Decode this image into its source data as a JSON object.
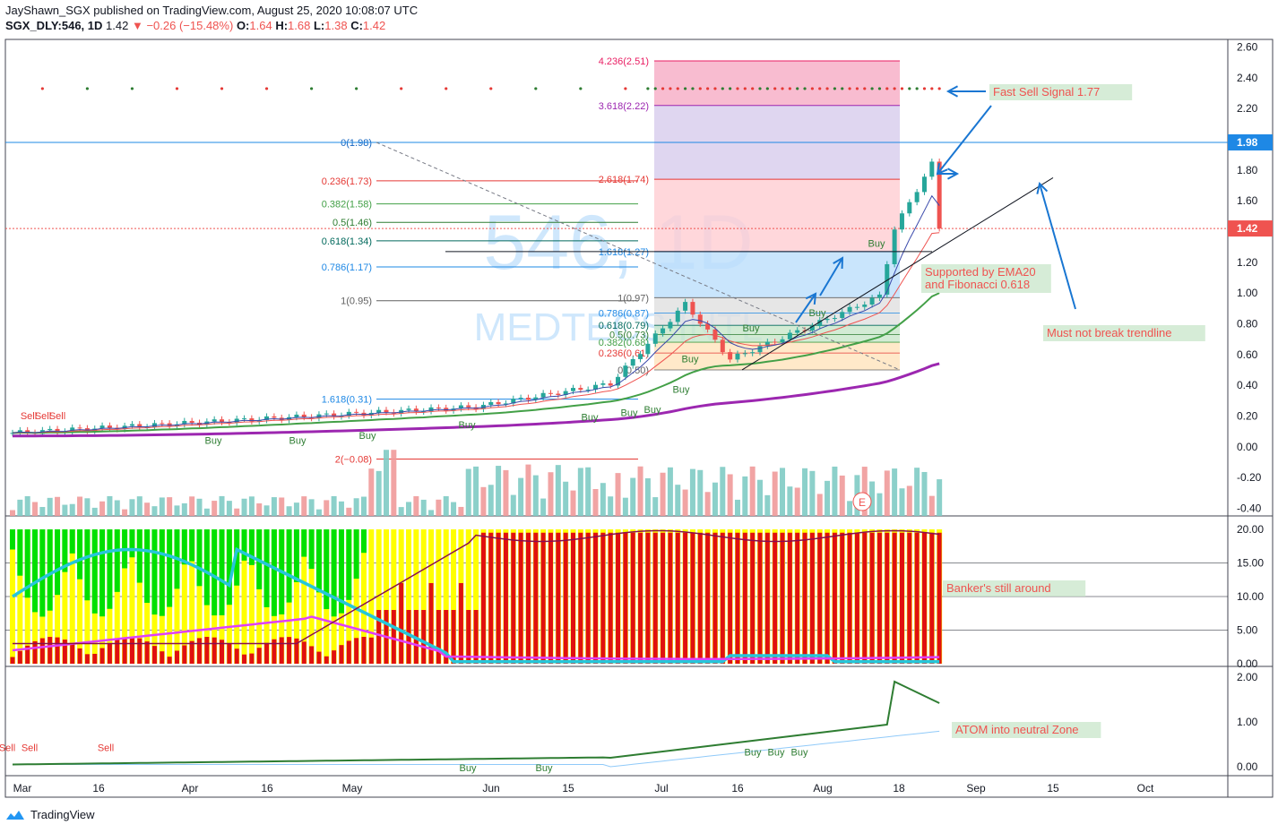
{
  "header": {
    "publisher_line": "JayShawn_SGX published on TradingView.com, August 25, 2020 10:08:07 UTC",
    "symbol": "SGX_DLY:546, 1D",
    "last": "1.42",
    "change": "−0.26 (−15.48%)",
    "open_label": "O:",
    "open": "1.64",
    "high_label": "H:",
    "high": "1.68",
    "low_label": "L:",
    "low": "1.38",
    "close_label": "C:",
    "close": "1.42"
  },
  "footer": {
    "brand": "TradingView"
  },
  "watermark": {
    "line1": "546, 1D",
    "line2": "MEDTECS INTL"
  },
  "colors": {
    "up": "#26a69a",
    "down": "#ef5350",
    "ema_green": "#43a047",
    "ema_purple": "#9c27b0",
    "fib_pink": "#f48fb1",
    "fib_lav": "#d1c4e9",
    "fib_blue": "#bbdefb",
    "fib_red": "#ffcdd2",
    "annot_bg": "#c8e6c9",
    "annot_text": "#ef5350",
    "arrow": "#1976d2",
    "yellow": "#ffff00",
    "bar_red": "#e01010"
  },
  "chart_data": [
    {
      "type": "candlestick",
      "panel": "price",
      "x_labels": [
        "Mar",
        "16",
        "Apr",
        "16",
        "May",
        "Jun",
        "15",
        "Jul",
        "16",
        "Aug",
        "18",
        "Sep",
        "15",
        "Oct"
      ],
      "price_axis": [
        "2.60",
        "2.40",
        "2.20",
        "2.00",
        "1.80",
        "1.60",
        "1.40",
        "1.20",
        "1.00",
        "0.80",
        "0.60",
        "0.40",
        "0.20",
        "0.00",
        "-0.20",
        "-0.40"
      ],
      "ylim": [
        -0.45,
        2.65
      ],
      "last_price_tag": "1.42",
      "high_line_tag": "1.98",
      "segments": [
        {
          "from": 0,
          "to": 62,
          "start": 0.09,
          "end": 0.26
        },
        {
          "from": 62,
          "to": 80,
          "start": 0.26,
          "end": 0.41
        },
        {
          "from": 80,
          "to": 90,
          "start": 0.41,
          "end": 0.93
        },
        {
          "from": 90,
          "to": 96,
          "start": 0.93,
          "end": 0.57
        },
        {
          "from": 96,
          "to": 108,
          "start": 0.57,
          "end": 0.81
        },
        {
          "from": 108,
          "to": 116,
          "start": 0.81,
          "end": 0.98
        },
        {
          "from": 116,
          "to": 118,
          "start": 0.98,
          "end": 1.42
        },
        {
          "from": 118,
          "to": 123,
          "start": 1.42,
          "end": 1.84
        },
        {
          "from": 123,
          "to": 124,
          "start": 1.84,
          "end": 1.68
        },
        {
          "from": 124,
          "to": 125,
          "start": 1.68,
          "end": 1.42
        }
      ],
      "fib_left": [
        {
          "label": "0(1.98)",
          "value": 1.98
        },
        {
          "label": "0.236(1.73)",
          "value": 1.73
        },
        {
          "label": "0.382(1.58)",
          "value": 1.58
        },
        {
          "label": "0.5(1.46)",
          "value": 1.46
        },
        {
          "label": "0.618(1.34)",
          "value": 1.34
        },
        {
          "label": "0.786(1.17)",
          "value": 1.17
        },
        {
          "label": "1(0.95)",
          "value": 0.95
        },
        {
          "label": "1.618(0.31)",
          "value": 0.31
        },
        {
          "label": "2(−0.08)",
          "value": -0.08
        }
      ],
      "fib_right_upper": [
        {
          "label": "4.236(2.51)",
          "value": 2.51
        },
        {
          "label": "3.618(2.22)",
          "value": 2.22
        },
        {
          "label": "2.618(1.74)",
          "value": 1.74
        },
        {
          "label": "1.618(1.27)",
          "value": 1.27
        }
      ],
      "fib_right_lower": [
        {
          "label": "1(0.97)",
          "value": 0.97
        },
        {
          "label": "0.786(0.87)",
          "value": 0.87
        },
        {
          "label": "0.618(0.79)",
          "value": 0.79
        },
        {
          "label": "0.5(0.73)",
          "value": 0.73
        },
        {
          "label": "0.382(0.68)",
          "value": 0.68
        },
        {
          "label": "0.236(0.61)",
          "value": 0.61
        },
        {
          "label": "0(0.50)",
          "value": 0.5
        }
      ],
      "signals_buy": [
        "Buy",
        "Buy",
        "Buy",
        "Buy",
        "Buy",
        "Buy",
        "Buy",
        "Buy",
        "Buy",
        "Buy",
        "Buy",
        "Buy"
      ],
      "signals_sell": [
        "Sell",
        "Sell",
        "Sell"
      ],
      "annotations": {
        "fast_sell": "Fast Sell Signal 1.77",
        "supported": "Supported by EMA20",
        "supported2": "and Fibonacci 0.618",
        "trendline": "Must not break trendline",
        "earnings": "E"
      }
    },
    {
      "type": "bar",
      "panel": "banker",
      "axis": [
        "20.00",
        "15.00",
        "10.00",
        "5.00",
        "0.00"
      ],
      "ylim": [
        0,
        20
      ],
      "annotation": "Banker's still around"
    },
    {
      "type": "line",
      "panel": "atom",
      "axis": [
        "2.00",
        "1.00",
        "0.00"
      ],
      "ylim": [
        0,
        2
      ],
      "sell_labels": [
        "Sell",
        "Sell",
        "Sell"
      ],
      "buy_labels": [
        "Buy",
        "Buy",
        "Buy",
        "Buy",
        "Buy"
      ],
      "annotation": "ATOM into neutral Zone"
    }
  ]
}
